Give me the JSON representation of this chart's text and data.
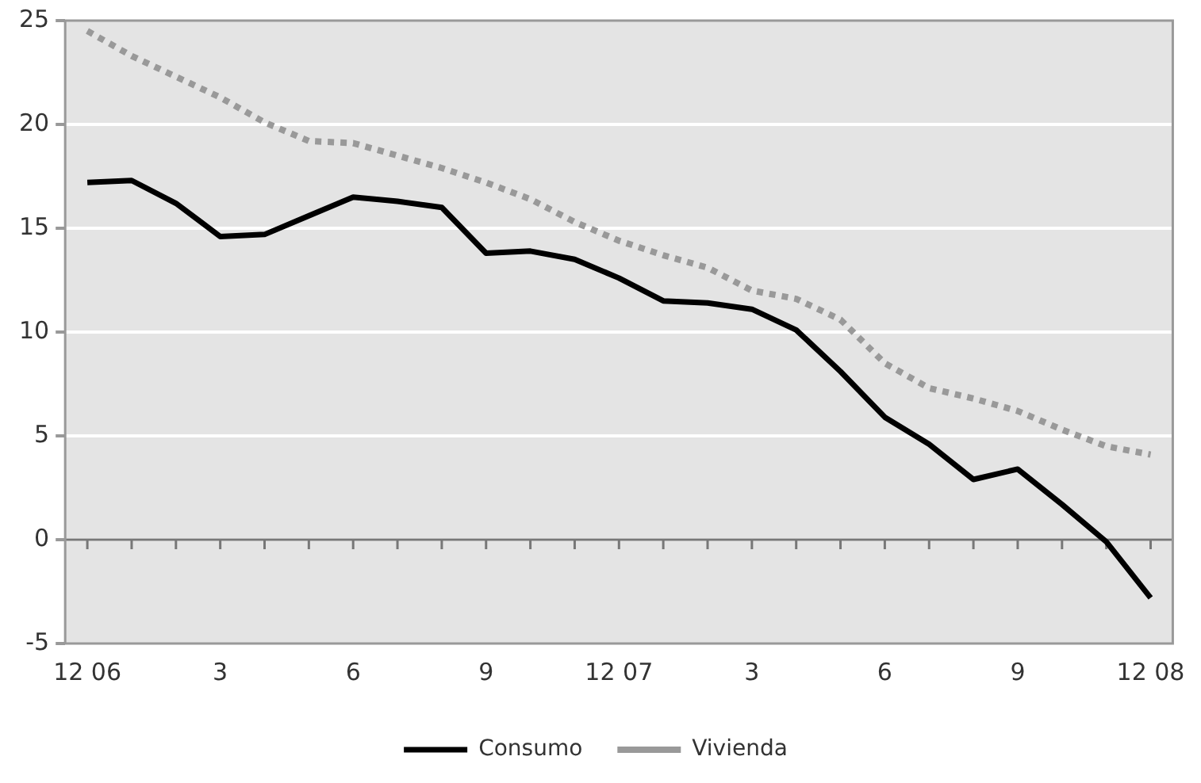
{
  "chart_data": {
    "type": "line",
    "categories": [
      "12 06",
      null,
      null,
      "3",
      null,
      null,
      "6",
      null,
      null,
      "9",
      null,
      null,
      "12 07",
      null,
      null,
      "3",
      null,
      null,
      "6",
      null,
      null,
      "9",
      null,
      null,
      "12 08"
    ],
    "series": [
      {
        "name": "Consumo",
        "color": "#000000",
        "line_style": "solid",
        "values": [
          17.2,
          17.3,
          16.2,
          14.6,
          14.7,
          15.6,
          16.5,
          16.3,
          16.0,
          13.8,
          13.9,
          13.5,
          12.6,
          11.5,
          11.4,
          11.1,
          10.1,
          8.1,
          5.9,
          4.6,
          2.9,
          3.4,
          1.7,
          -0.1,
          -2.8
        ]
      },
      {
        "name": "Vivienda",
        "color": "#999999",
        "line_style": "dotted",
        "values": [
          24.5,
          23.3,
          22.3,
          21.3,
          20.1,
          19.2,
          19.1,
          18.5,
          17.9,
          17.2,
          16.4,
          15.3,
          14.4,
          13.7,
          13.1,
          12.0,
          11.6,
          10.6,
          8.5,
          7.3,
          6.8,
          6.2,
          5.3,
          4.5,
          4.1
        ]
      }
    ],
    "ylim": [
      -5,
      25
    ],
    "yticks": [
      -5,
      0,
      5,
      10,
      15,
      20,
      25
    ],
    "grid": "y",
    "legend": "bottom",
    "marker": "none"
  }
}
